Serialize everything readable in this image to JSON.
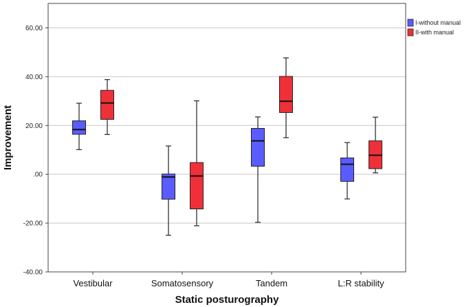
{
  "chart_data": {
    "type": "boxplot",
    "xlabel": "Static posturography",
    "ylabel": "Improvement",
    "ylim": [
      -40,
      70
    ],
    "yticks": [
      60,
      40,
      20,
      0,
      -20,
      -40
    ],
    "ytick_labels": [
      "60.00",
      "40.00",
      "20.00",
      ".00",
      "-20.00",
      "-40.00"
    ],
    "grid": "horizontal",
    "legend_position": "top-right",
    "categories": [
      "Vestibular",
      "Somatosensory",
      "Tandem",
      "L:R stability"
    ],
    "series": [
      {
        "name": "I-without manual",
        "color": "#5a5cff",
        "boxes": [
          {
            "min": 10.1,
            "q1": 16.4,
            "median": 18.3,
            "q3": 21.9,
            "max": 29.1
          },
          {
            "min": -25.0,
            "q1": -10.2,
            "median": -1.1,
            "q3": 0.1,
            "max": 11.6
          },
          {
            "min": -19.7,
            "q1": 3.3,
            "median": 13.7,
            "q3": 18.8,
            "max": 23.5
          },
          {
            "min": -10.1,
            "q1": -2.9,
            "median": 4.1,
            "q3": 6.7,
            "max": 13.0
          }
        ]
      },
      {
        "name": "II-with manual",
        "color": "#ef3038",
        "boxes": [
          {
            "min": 16.3,
            "q1": 22.5,
            "median": 29.2,
            "q3": 34.4,
            "max": 38.8
          },
          {
            "min": -21.1,
            "q1": -14.2,
            "median": -0.7,
            "q3": 4.8,
            "max": 30.1
          },
          {
            "min": 15.0,
            "q1": 25.3,
            "median": 29.9,
            "q3": 40.1,
            "max": 47.7
          },
          {
            "min": 0.6,
            "q1": 2.3,
            "median": 7.8,
            "q3": 13.7,
            "max": 23.4
          }
        ]
      }
    ]
  }
}
